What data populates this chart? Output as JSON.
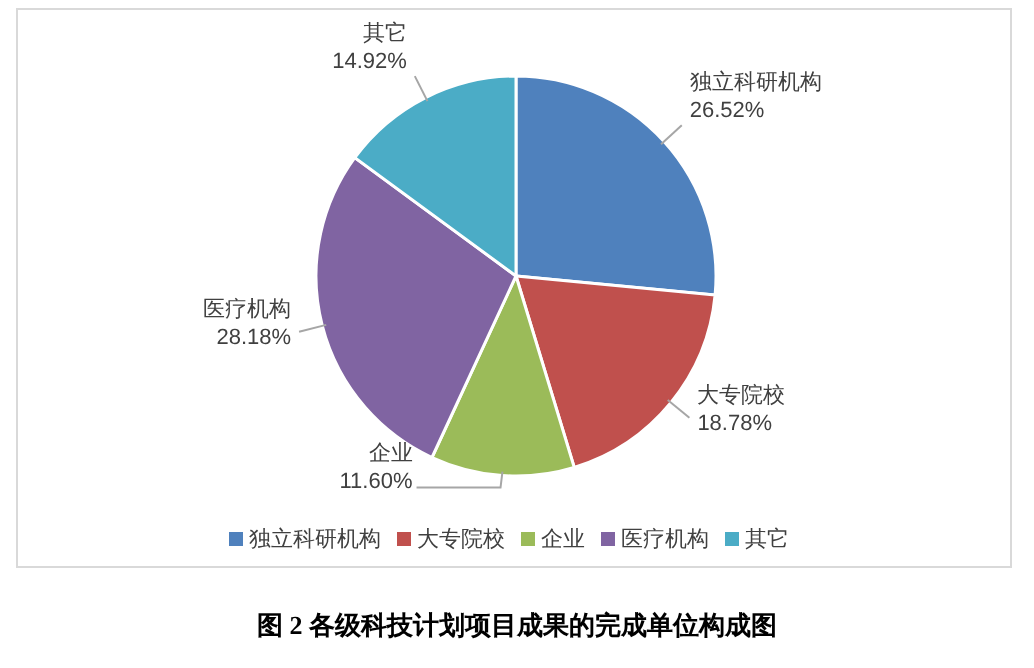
{
  "chart_data": {
    "type": "pie",
    "title": "图 2  各级科技计划项目成果的完成单位构成图",
    "categories": [
      "独立科研机构",
      "大专院校",
      "企业",
      "医疗机构",
      "其它"
    ],
    "values": [
      26.52,
      18.78,
      11.6,
      28.18,
      14.92
    ],
    "value_labels": [
      "26.52%",
      "18.78%",
      "11.60%",
      "28.18%",
      "14.92%"
    ],
    "colors": [
      "#4f81bd",
      "#c0504d",
      "#9bbb59",
      "#8064a2",
      "#4bacc6"
    ],
    "legend": "bottom"
  }
}
